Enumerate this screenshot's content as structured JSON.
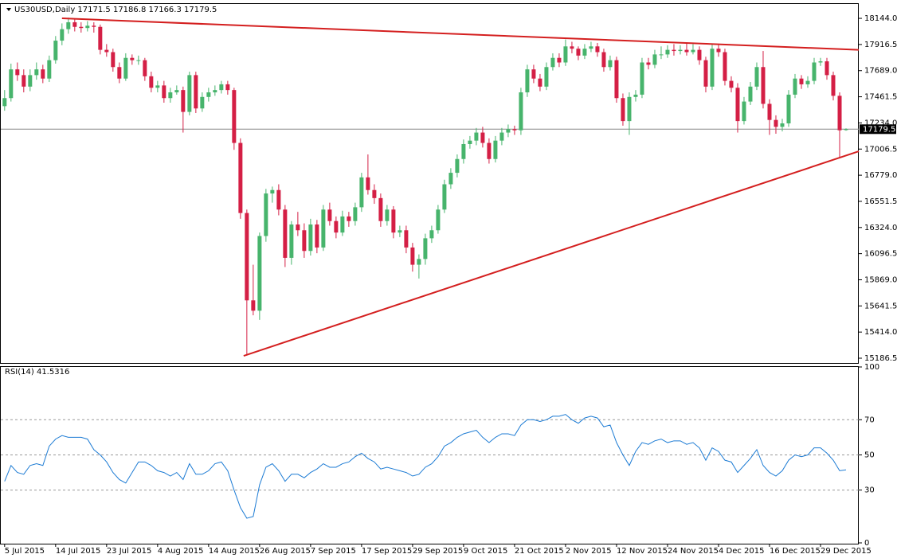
{
  "chart_data": [
    {
      "type": "candlestick",
      "title": "US30USD,Daily  17171.5 17186.8 17166.3 17179.5",
      "bull_color": "#47b46c",
      "bear_color": "#d41f45",
      "last_price": 17179.5,
      "xlim": [
        -0.6,
        134
      ],
      "ylim": [
        15145,
        18276
      ],
      "yticks": [
        {
          "value": 18144,
          "label": "18144.0"
        },
        17916.5,
        {
          "value": 17689,
          "label": "17689.0"
        },
        17461.5,
        {
          "value": 17234,
          "label": "17234.0"
        },
        17006.5,
        {
          "value": 16779,
          "label": "16779.0"
        },
        16551.5,
        {
          "value": 16324,
          "label": "16324.0"
        },
        16096.5,
        {
          "value": 15869,
          "label": "15869.0"
        },
        15641.5,
        {
          "value": 15414,
          "label": "15414.0"
        },
        15186.5
      ],
      "trendlines": [
        {
          "color": "#d41f1f",
          "x": [
            9,
            134
          ],
          "y": [
            18144,
            17870
          ]
        },
        {
          "color": "#d41f1f",
          "x": [
            37.5,
            134
          ],
          "y": [
            15207,
            16987
          ]
        }
      ],
      "open": [
        17380,
        17450,
        17700,
        17650,
        17550,
        17650,
        17700,
        17620,
        17780,
        17950,
        18050,
        18110,
        18070,
        18060,
        18080,
        18070,
        17870,
        17850,
        17720,
        17620,
        17800,
        17780,
        17780,
        17640,
        17540,
        17560,
        17450,
        17500,
        17520,
        17330,
        17650,
        17360,
        17460,
        17500,
        17520,
        17570,
        17520,
        17060,
        16450,
        15690,
        15600,
        16250,
        16620,
        16650,
        16480,
        16060,
        16350,
        16300,
        16120,
        16350,
        16150,
        16480,
        16380,
        16280,
        16420,
        16380,
        16500,
        16760,
        16650,
        16580,
        16380,
        16480,
        16280,
        16300,
        16150,
        16000,
        16050,
        16230,
        16300,
        16480,
        16700,
        16800,
        16920,
        17050,
        17080,
        17150,
        17060,
        16920,
        17080,
        17150,
        17180,
        17170,
        17500,
        17700,
        17620,
        17550,
        17720,
        17800,
        17760,
        17900,
        17880,
        17820,
        17880,
        17900,
        17850,
        17720,
        17780,
        17450,
        17250,
        17460,
        17480,
        17760,
        17740,
        17830,
        17830,
        17870,
        17860,
        17870,
        17850,
        17870,
        17780,
        17550,
        17880,
        17850,
        17600,
        17540,
        17250,
        17420,
        17550,
        17720,
        17400,
        17260,
        17200,
        17230,
        17480,
        17620,
        17570,
        17600,
        17760,
        17770,
        17650,
        17470,
        17171.5
      ],
      "high": [
        17520,
        17750,
        17760,
        17700,
        17700,
        17760,
        17740,
        17820,
        17990,
        18100,
        18150,
        18140,
        18110,
        18120,
        18110,
        18090,
        17920,
        17880,
        17760,
        17840,
        17830,
        17820,
        17800,
        17680,
        17600,
        17600,
        17540,
        17560,
        17550,
        17680,
        17680,
        17500,
        17540,
        17560,
        17600,
        17600,
        17540,
        17100,
        16480,
        16000,
        16280,
        16660,
        16680,
        16700,
        16520,
        16380,
        16460,
        16360,
        16400,
        16390,
        16520,
        16540,
        16420,
        16470,
        16460,
        16540,
        16800,
        16960,
        16700,
        16620,
        16520,
        16510,
        16340,
        16340,
        16190,
        16090,
        16270,
        16340,
        16520,
        16740,
        16840,
        16960,
        17090,
        17120,
        17190,
        17200,
        17100,
        17120,
        17190,
        17220,
        17210,
        17540,
        17740,
        17740,
        17660,
        17760,
        17840,
        17840,
        17960,
        17940,
        17900,
        17920,
        17940,
        17930,
        17880,
        17820,
        17810,
        17490,
        17500,
        17520,
        17800,
        17800,
        17870,
        17900,
        17910,
        17920,
        17910,
        17930,
        17920,
        17900,
        17810,
        17920,
        17920,
        17880,
        17640,
        17580,
        17460,
        17590,
        17760,
        17860,
        17440,
        17300,
        17270,
        17520,
        17660,
        17650,
        17640,
        17800,
        17800,
        17800,
        17680,
        17500,
        17186.8
      ],
      "low": [
        17340,
        17420,
        17600,
        17500,
        17510,
        17610,
        17580,
        17590,
        17750,
        17910,
        18010,
        18030,
        18020,
        18030,
        18020,
        17830,
        17810,
        17680,
        17580,
        17600,
        17740,
        17740,
        17600,
        17500,
        17500,
        17410,
        17410,
        17480,
        17150,
        17300,
        17320,
        17330,
        17420,
        17470,
        17490,
        17480,
        17000,
        16400,
        15210,
        15560,
        15520,
        16200,
        16540,
        16430,
        15980,
        16000,
        16250,
        16060,
        16080,
        16100,
        16120,
        16340,
        16230,
        16250,
        16330,
        16340,
        16460,
        16610,
        16530,
        16330,
        16340,
        16230,
        16240,
        16100,
        15940,
        15880,
        16000,
        16190,
        16270,
        16450,
        16660,
        16760,
        16880,
        17010,
        17040,
        17020,
        16880,
        16890,
        17040,
        17110,
        17130,
        17130,
        17460,
        17580,
        17510,
        17520,
        17690,
        17720,
        17730,
        17840,
        17780,
        17790,
        17850,
        17810,
        17680,
        17690,
        17410,
        17210,
        17130,
        17420,
        17450,
        17700,
        17710,
        17790,
        17800,
        17820,
        17830,
        17820,
        17830,
        17740,
        17500,
        17520,
        17810,
        17560,
        17500,
        17150,
        17220,
        17390,
        17520,
        17360,
        17130,
        17140,
        17160,
        17200,
        17450,
        17530,
        17540,
        17570,
        17730,
        17610,
        17430,
        16930,
        17166.3
      ],
      "close": [
        17450,
        17700,
        17650,
        17550,
        17650,
        17700,
        17620,
        17780,
        17950,
        18050,
        18110,
        18070,
        18060,
        18080,
        18070,
        17870,
        17850,
        17720,
        17620,
        17800,
        17780,
        17780,
        17640,
        17540,
        17560,
        17450,
        17500,
        17520,
        17330,
        17650,
        17360,
        17460,
        17500,
        17520,
        17570,
        17520,
        17060,
        16450,
        15690,
        15600,
        16250,
        16620,
        16650,
        16480,
        16060,
        16350,
        16300,
        16120,
        16350,
        16150,
        16480,
        16380,
        16280,
        16420,
        16380,
        16500,
        16760,
        16650,
        16580,
        16380,
        16480,
        16280,
        16300,
        16150,
        16000,
        16050,
        16230,
        16300,
        16480,
        16700,
        16800,
        16920,
        17050,
        17080,
        17150,
        17060,
        16920,
        17080,
        17150,
        17180,
        17170,
        17500,
        17700,
        17620,
        17550,
        17720,
        17800,
        17760,
        17900,
        17880,
        17820,
        17880,
        17900,
        17850,
        17720,
        17780,
        17450,
        17250,
        17460,
        17480,
        17760,
        17740,
        17830,
        17830,
        17870,
        17860,
        17870,
        17850,
        17870,
        17780,
        17550,
        17880,
        17850,
        17600,
        17540,
        17250,
        17420,
        17550,
        17720,
        17400,
        17260,
        17200,
        17230,
        17480,
        17620,
        17570,
        17600,
        17760,
        17770,
        17650,
        17470,
        17170,
        17179.5
      ]
    },
    {
      "type": "line",
      "title": "RSI(14) 41.5316",
      "color": "#1c7bd4",
      "levels": [
        70,
        50,
        30
      ],
      "xlim": [
        -0.6,
        134
      ],
      "ylim": [
        0,
        100
      ],
      "yticks": [
        100,
        70,
        50,
        30,
        0
      ],
      "xticks": [
        {
          "value": 0,
          "label": "5 Jul 2015"
        },
        {
          "value": 8,
          "label": "14 Jul 2015"
        },
        {
          "value": 16,
          "label": "23 Jul 2015"
        },
        {
          "value": 24,
          "label": "4 Aug 2015"
        },
        {
          "value": 32,
          "label": "14 Aug 2015"
        },
        {
          "value": 40,
          "label": "26 Aug 2015"
        },
        {
          "value": 48,
          "label": "7 Sep 2015"
        },
        {
          "value": 56,
          "label": "17 Sep 2015"
        },
        {
          "value": 64,
          "label": "29 Sep 2015"
        },
        {
          "value": 72,
          "label": "9 Oct 2015"
        },
        {
          "value": 80,
          "label": "21 Oct 2015"
        },
        {
          "value": 88,
          "label": "2 Nov 2015"
        },
        {
          "value": 96,
          "label": "12 Nov 2015"
        },
        {
          "value": 104,
          "label": "24 Nov 2015"
        },
        {
          "value": 112,
          "label": "4 Dec 2015"
        },
        {
          "value": 120,
          "label": "16 Dec 2015"
        },
        {
          "value": 128,
          "label": "29 Dec 2015"
        }
      ],
      "values": [
        35,
        44,
        40,
        39,
        44,
        45,
        44,
        55,
        59,
        61,
        60,
        60,
        60,
        59,
        53,
        50,
        46,
        40,
        36,
        34,
        40,
        46,
        46,
        44,
        41,
        40,
        38,
        40,
        36,
        45,
        39,
        39,
        41,
        45,
        46,
        41,
        30,
        20,
        14,
        15,
        33,
        43,
        45,
        41,
        35,
        39,
        39,
        37,
        40,
        42,
        45,
        43,
        43,
        45,
        46,
        49,
        51,
        48,
        46,
        42,
        43,
        42,
        41,
        40,
        38,
        39,
        43,
        45,
        49,
        55,
        57,
        60,
        62,
        63,
        64,
        60,
        57,
        60,
        62,
        62,
        61,
        67,
        70,
        70,
        69,
        70,
        72,
        72,
        73,
        70,
        68,
        71,
        72,
        71,
        66,
        67,
        57,
        50,
        44,
        52,
        57,
        56,
        58,
        59,
        57,
        58,
        58,
        56,
        57,
        54,
        47,
        54,
        52,
        47,
        46,
        40,
        44,
        48,
        53,
        44,
        40,
        38,
        41,
        47,
        50,
        49,
        50,
        54,
        54,
        51,
        47,
        41,
        41.5316
      ]
    }
  ]
}
